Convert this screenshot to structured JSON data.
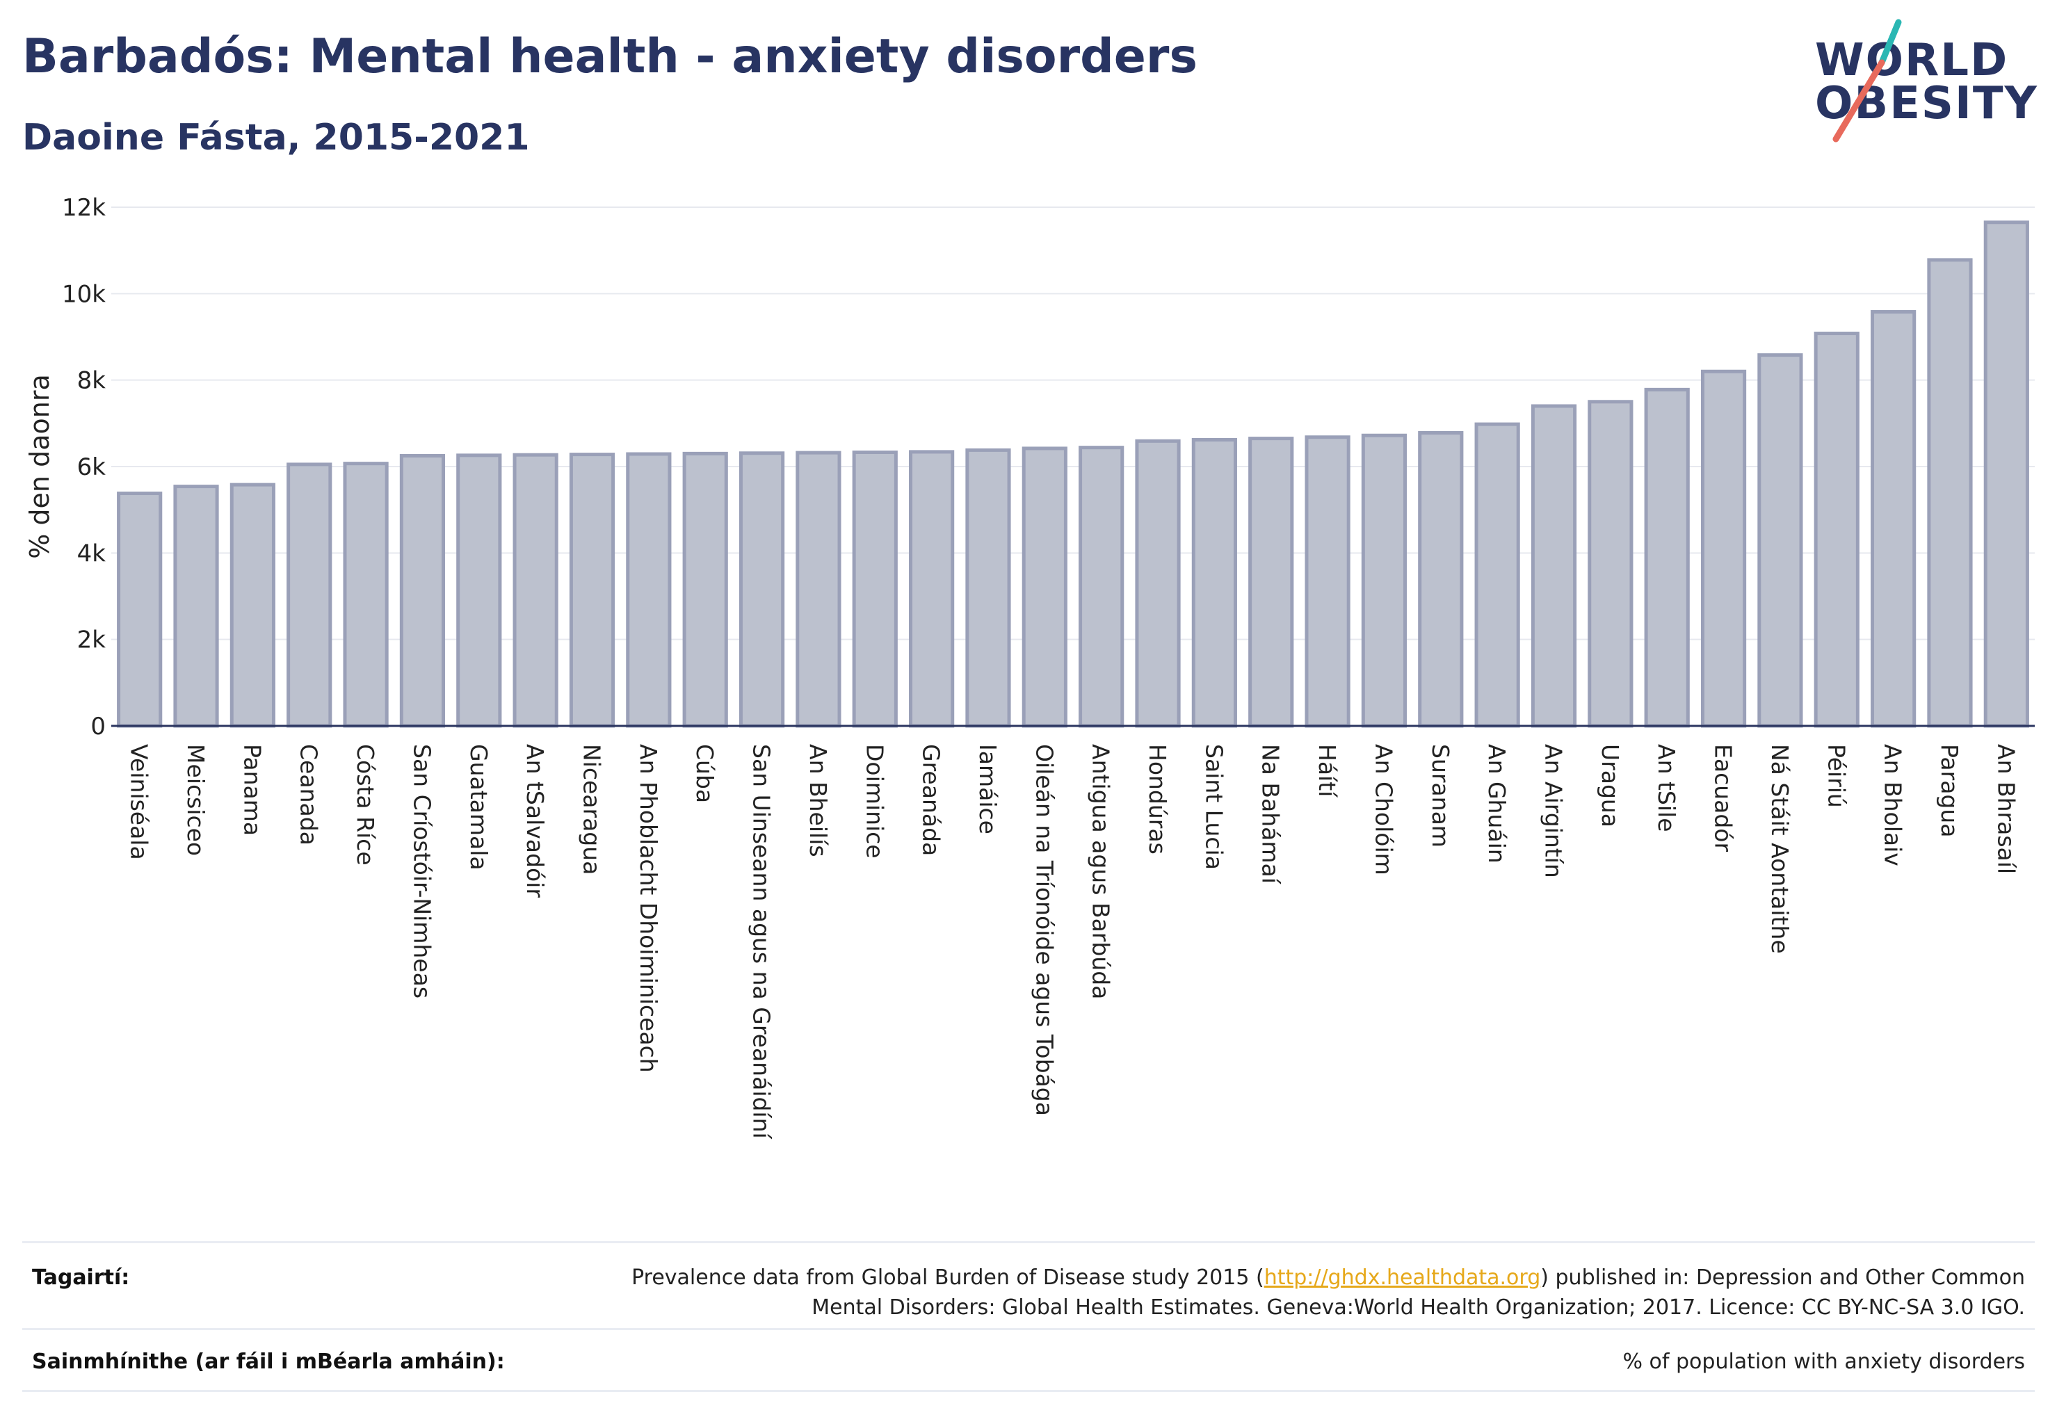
{
  "header": {
    "title": "Barbadós: Mental health - anxiety disorders",
    "subtitle": "Daoine Fásta, 2015-2021"
  },
  "logo": {
    "line1": "WORLD",
    "line2": "OBESITY",
    "accent_colors": [
      "#2ab7b3",
      "#e86a5c"
    ]
  },
  "chart_data": {
    "type": "bar",
    "ylabel": "% den daonra",
    "ylim": [
      0,
      12000
    ],
    "yticks": [
      {
        "value": 0,
        "label": "0"
      },
      {
        "value": 2000,
        "label": "2k"
      },
      {
        "value": 4000,
        "label": "4k"
      },
      {
        "value": 6000,
        "label": "6k"
      },
      {
        "value": 8000,
        "label": "8k"
      },
      {
        "value": 10000,
        "label": "10k"
      },
      {
        "value": 12000,
        "label": "12k"
      }
    ],
    "grid": true,
    "bar_color": "#bcc1ce",
    "bar_edge_color": "#9aa0b8",
    "categories": [
      "Veiniséala",
      "Meicsiceo",
      "Panama",
      "Ceanada",
      "Cósta Ríce",
      "San Críostóir-Nimheas",
      "Guatamala",
      "An tSalvadóir",
      "Nicearagua",
      "An Phoblacht Dhoiminiceach",
      "Cúba",
      "San Uinseann agus na Greanáidíní",
      "An Bheilís",
      "Doiminice",
      "Greanáda",
      "Iamáice",
      "Oileán na Tríonóide agus Tobága",
      "Antigua agus Barbúda",
      "Hondúras",
      "Saint Lucia",
      "Na Bahámaí",
      "Háítí",
      "An Cholóim",
      "Suranam",
      "An Ghuáin",
      "An Airgintín",
      "Uragua",
      "An tSile",
      "Eacuadór",
      "Ná Stáit Aontaithe",
      "Péiriú",
      "An Bholaiv",
      "Paragua",
      "An Bhrasaíl"
    ],
    "values": [
      5380,
      5540,
      5580,
      6050,
      6070,
      6250,
      6260,
      6270,
      6280,
      6290,
      6300,
      6310,
      6320,
      6330,
      6340,
      6380,
      6420,
      6440,
      6590,
      6620,
      6650,
      6680,
      6720,
      6780,
      6980,
      7400,
      7500,
      7780,
      8200,
      8580,
      9080,
      9580,
      10780,
      11650
    ]
  },
  "footer": {
    "references_label": "Tagairtí:",
    "references_pre": "Prevalence data from Global Burden of Disease study 2015 (",
    "references_link": "http://ghdx.healthdata.org",
    "references_post": ") published in: Depression and Other Common",
    "references_line2": "Mental Disorders: Global Health Estimates. Geneva:World Health Organization; 2017. Licence: CC BY-NC-SA 3.0 IGO.",
    "definitions_label": "Sainmhínithe (ar fáil i mBéarla amháin):",
    "definitions_text": "% of population with anxiety disorders"
  }
}
